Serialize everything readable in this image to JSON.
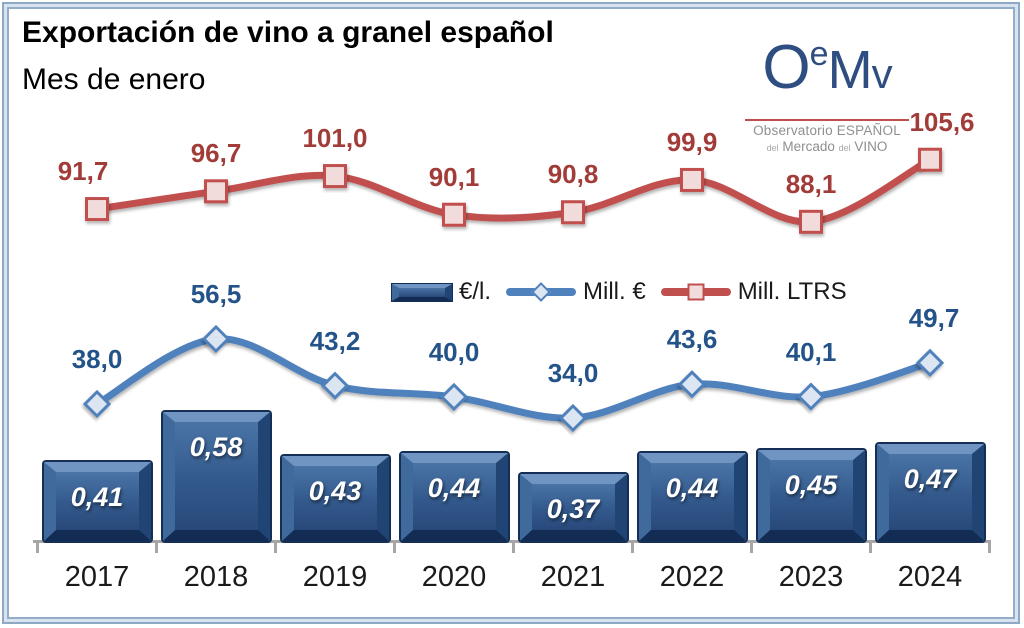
{
  "header": {
    "title": "Exportación de vino a granel español",
    "subtitle": "Mes de enero"
  },
  "logo": {
    "mark_o": "O",
    "mark_e": "e",
    "mark_m": "M",
    "mark_v": "v",
    "line1": "Observatorio ESPAÑOL",
    "l2a": "del",
    "l2b": "Mercado",
    "l2c": "del",
    "l2d": "VINO"
  },
  "chart_data": {
    "type": "combo",
    "title": "Exportación de vino a granel español",
    "subtitle": "Mes de enero",
    "categories": [
      "2017",
      "2018",
      "2019",
      "2020",
      "2021",
      "2022",
      "2023",
      "2024"
    ],
    "series": [
      {
        "name": "€/l.",
        "type": "bar",
        "values": [
          0.41,
          0.58,
          0.43,
          0.44,
          0.37,
          0.44,
          0.45,
          0.47
        ],
        "labels": [
          "0,41",
          "0,58",
          "0,43",
          "0,44",
          "0,37",
          "0,44",
          "0,45",
          "0,47"
        ],
        "color": "#2f5b8f",
        "label_color": "#ffffff"
      },
      {
        "name": "Mill. €",
        "type": "line",
        "marker": "diamond",
        "values": [
          38.0,
          56.5,
          43.2,
          40.0,
          34.0,
          43.6,
          40.1,
          49.7
        ],
        "labels": [
          "38,0",
          "56,5",
          "43,2",
          "40,0",
          "34,0",
          "43,6",
          "40,1",
          "49,7"
        ],
        "color": "#4f81bd",
        "marker_fill": "#dce6f2",
        "label_color": "#245389"
      },
      {
        "name": "Mill. LTRS",
        "type": "line",
        "marker": "square",
        "values": [
          91.7,
          96.7,
          101.0,
          90.1,
          90.8,
          99.9,
          88.1,
          105.6
        ],
        "labels": [
          "91,7",
          "96,7",
          "101,0",
          "90,1",
          "90,8",
          "99,9",
          "88,1",
          "105,6"
        ],
        "color": "#c0504d",
        "marker_fill": "#f2dcdb",
        "label_color": "#a13c39"
      }
    ],
    "legend_entries": [
      "€/l.",
      "Mill. €",
      "Mill. LTRS"
    ],
    "legend_position": "center",
    "gridlines": false,
    "axes_value_labels_visible": false,
    "x_axis_color": "#a6a6a6"
  }
}
